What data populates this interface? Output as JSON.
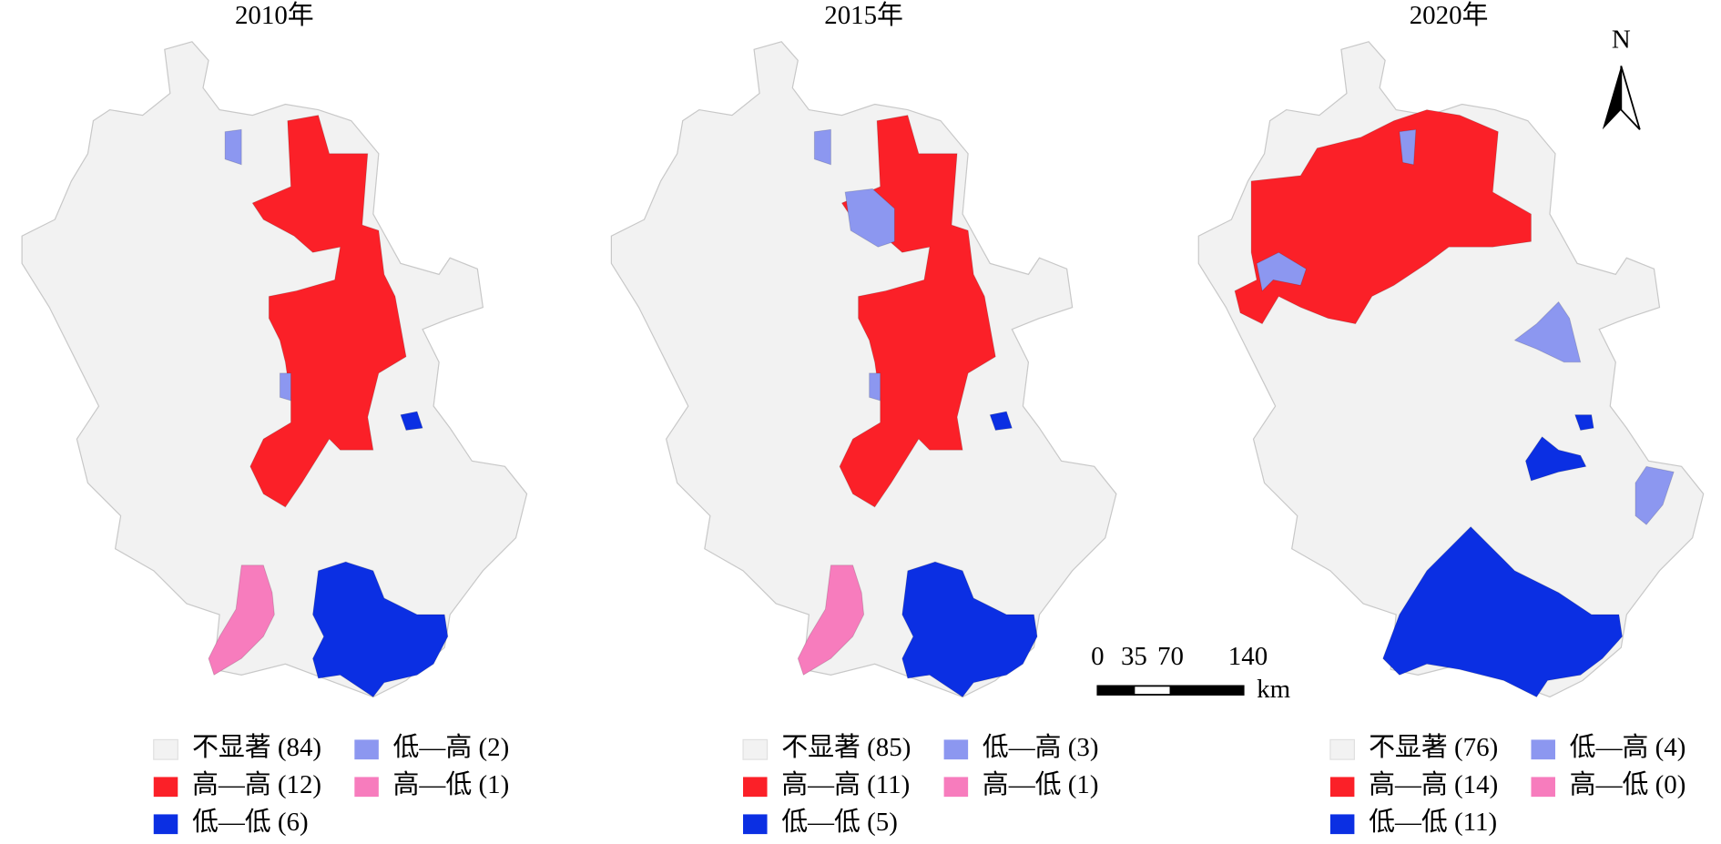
{
  "panels": [
    {
      "title": "2010年",
      "legend": [
        {
          "label": "不显著",
          "count": "(84)",
          "color": "#f2f2f2"
        },
        {
          "label": "低—高",
          "count": "(2)",
          "color": "#8c97f0"
        },
        {
          "label": "高—高",
          "count": "(12)",
          "color": "#fb2028"
        },
        {
          "label": "高—低",
          "count": "(1)",
          "color": "#f77cbd"
        },
        {
          "label": "低—低",
          "count": "(6)",
          "color": "#0b2fe3"
        }
      ]
    },
    {
      "title": "2015年",
      "legend": [
        {
          "label": "不显著",
          "count": "(85)",
          "color": "#f2f2f2"
        },
        {
          "label": "低—高",
          "count": "(3)",
          "color": "#8c97f0"
        },
        {
          "label": "高—高",
          "count": "(11)",
          "color": "#fb2028"
        },
        {
          "label": "高—低",
          "count": "(1)",
          "color": "#f77cbd"
        },
        {
          "label": "低—低",
          "count": "(5)",
          "color": "#0b2fe3"
        }
      ]
    },
    {
      "title": "2020年",
      "legend": [
        {
          "label": "不显著",
          "count": "(76)",
          "color": "#f2f2f2"
        },
        {
          "label": "低—高",
          "count": "(4)",
          "color": "#8c97f0"
        },
        {
          "label": "高—高",
          "count": "(14)",
          "color": "#fb2028"
        },
        {
          "label": "高—低",
          "count": "(0)",
          "color": "#f77cbd"
        },
        {
          "label": "低—低",
          "count": "(11)",
          "color": "#0b2fe3"
        }
      ]
    }
  ],
  "scale_bar": {
    "ticks": [
      0,
      35,
      70,
      140
    ],
    "unit": "km"
  },
  "north_arrow": "N"
}
